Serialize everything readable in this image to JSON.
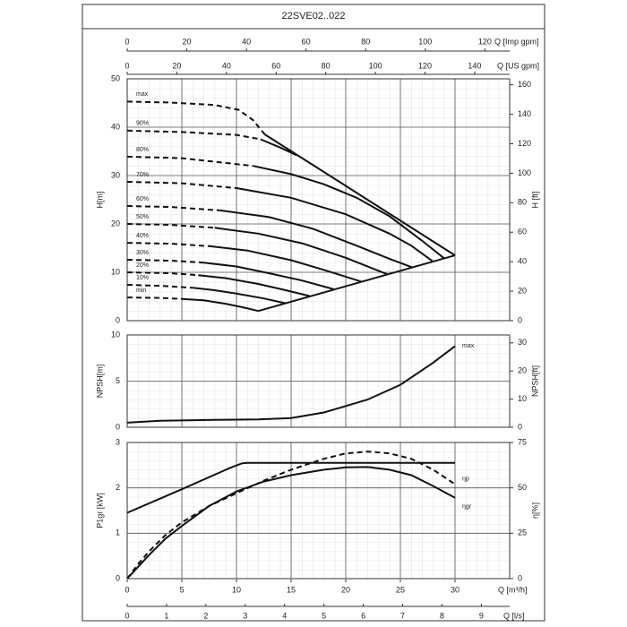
{
  "title": "22SVE02..022",
  "axes": {
    "imp": {
      "label": "Q [Imp gpm]",
      "xlim": [
        0,
        128.3
      ],
      "xticks": [
        0,
        20,
        40,
        60,
        80,
        100,
        120
      ]
    },
    "us": {
      "label": "Q [US gpm]",
      "xlim": [
        0,
        154.1
      ],
      "xticks": [
        0,
        20,
        40,
        60,
        80,
        100,
        120,
        140
      ]
    },
    "m3h": {
      "label": "Q [m³/h]",
      "xlim": [
        0,
        35
      ],
      "xticks": [
        0,
        5,
        10,
        15,
        20,
        25,
        30
      ]
    },
    "ls": {
      "label": "Q [l/s]",
      "xlim": [
        0,
        9.72
      ],
      "xticks": [
        0,
        1,
        2,
        3,
        4,
        5,
        6,
        7,
        8,
        9
      ]
    }
  },
  "chart_data": [
    {
      "type": "curves",
      "ylabel": "H[m]",
      "y2label": "H [ft]",
      "ylim": [
        0,
        50
      ],
      "yticks": [
        0,
        10,
        20,
        30,
        40,
        50
      ],
      "y2lim": [
        0,
        164.04
      ],
      "y2ticks": [
        0,
        20,
        40,
        60,
        80,
        100,
        120,
        140,
        160
      ],
      "color": "#111111",
      "curves": [
        {
          "name": "max",
          "dashed": {
            "x": [
              0,
              4,
              8,
              10.2,
              11.5,
              12.6
            ],
            "values": [
              45.3,
              45.1,
              44.6,
              43.6,
              41.5,
              38.5
            ]
          },
          "solid": {
            "x": [
              12.6,
              30
            ],
            "values": [
              38.5,
              13.5
            ]
          }
        },
        {
          "name": "90%",
          "dashed": {
            "x": [
              0,
              5,
              10,
              12.2
            ],
            "values": [
              39.3,
              39,
              38.4,
              37.5
            ]
          },
          "solid": {
            "x": [
              12.2,
              14,
              15.5
            ],
            "values": [
              37.5,
              35.8,
              34.2
            ]
          }
        },
        {
          "name": "80%",
          "dashed": {
            "x": [
              0,
              5,
              11.5
            ],
            "values": [
              33.9,
              33.6,
              32
            ]
          },
          "solid": {
            "x": [
              11.5,
              15,
              18,
              21,
              24,
              27,
              29
            ],
            "values": [
              32,
              30.3,
              28.2,
              25.4,
              21.6,
              16.5,
              12.9
            ]
          }
        },
        {
          "name": "70%",
          "dashed": {
            "x": [
              0,
              5,
              10
            ],
            "values": [
              28.7,
              28.4,
              27.4
            ]
          },
          "solid": {
            "x": [
              10,
              15,
              20,
              24,
              26,
              28
            ],
            "values": [
              27.4,
              25.4,
              22,
              18,
              15.5,
              12.2
            ]
          }
        },
        {
          "name": "60%",
          "dashed": {
            "x": [
              0,
              4,
              8.5
            ],
            "values": [
              23.7,
              23.5,
              22.8
            ]
          },
          "solid": {
            "x": [
              8.5,
              13,
              17,
              21,
              24,
              26.1
            ],
            "values": [
              22.8,
              21.4,
              19,
              15.5,
              12.8,
              11
            ]
          }
        },
        {
          "name": "50%",
          "dashed": {
            "x": [
              0,
              4,
              8
            ],
            "values": [
              20,
              19.8,
              19.2
            ]
          },
          "solid": {
            "x": [
              8,
              12,
              16,
              20,
              23.8
            ],
            "values": [
              19.2,
              18,
              16,
              13,
              9.6
            ]
          }
        },
        {
          "name": "40%",
          "dashed": {
            "x": [
              0,
              4,
              7.5
            ],
            "values": [
              16.1,
              15.9,
              15.4
            ]
          },
          "solid": {
            "x": [
              7.5,
              11,
              15,
              18,
              21.4
            ],
            "values": [
              15.4,
              14.5,
              12.5,
              10.5,
              8.1
            ]
          }
        },
        {
          "name": "30%",
          "dashed": {
            "x": [
              0,
              4,
              7
            ],
            "values": [
              12.6,
              12.4,
              12
            ]
          },
          "solid": {
            "x": [
              7,
              10,
              13,
              16,
              18.9
            ],
            "values": [
              12,
              11.2,
              9.8,
              8.3,
              6.5
            ]
          }
        },
        {
          "name": "20%",
          "dashed": {
            "x": [
              0,
              4,
              6.5
            ],
            "values": [
              10,
              9.8,
              9.4
            ]
          },
          "solid": {
            "x": [
              6.5,
              9,
              12,
              14.5,
              16.7
            ],
            "values": [
              9.4,
              8.8,
              7.6,
              6.3,
              5.1
            ]
          }
        },
        {
          "name": "10%",
          "dashed": {
            "x": [
              0,
              3,
              6
            ],
            "values": [
              7.4,
              7.2,
              6.8
            ]
          },
          "solid": {
            "x": [
              6,
              8,
              10,
              12.5,
              14.5
            ],
            "values": [
              6.8,
              6.3,
              5.6,
              4.6,
              3.6
            ]
          }
        },
        {
          "name": "min",
          "dashed": {
            "x": [
              0,
              3,
              5
            ],
            "values": [
              4.8,
              4.7,
              4.5
            ]
          },
          "solid": {
            "x": [
              5,
              7,
              9,
              10.5,
              12
            ],
            "values": [
              4.5,
              4.2,
              3.5,
              2.8,
              2
            ]
          }
        }
      ],
      "envelope": {
        "x": [
          12,
          30
        ],
        "values": [
          2,
          13.5
        ]
      }
    },
    {
      "type": "line",
      "ylabel": "NPSH[m]",
      "y2label": "NPSH[ft]",
      "ylim": [
        0,
        10
      ],
      "yticks": [
        0,
        5,
        10
      ],
      "y2lim": [
        0,
        32.81
      ],
      "y2ticks": [
        0,
        10,
        20,
        30
      ],
      "series": [
        {
          "name": "max",
          "color": "#111111",
          "x": [
            0,
            3,
            8,
            12,
            15,
            18,
            20,
            22,
            25,
            28,
            30
          ],
          "values": [
            0.5,
            0.7,
            0.8,
            0.85,
            1.0,
            1.6,
            2.3,
            3.0,
            4.6,
            7.0,
            8.8
          ]
        }
      ]
    },
    {
      "type": "line",
      "ylabel": "P1gr [kW]",
      "y2label": "η[%]",
      "ylim": [
        0,
        3
      ],
      "yticks": [
        0,
        1,
        2,
        3
      ],
      "y2lim": [
        0,
        75
      ],
      "y2ticks": [
        0,
        25,
        50,
        75
      ],
      "series": [
        {
          "color": "#111111",
          "x": [
            0,
            5,
            9.5,
            10.5,
            11,
            30
          ],
          "values": [
            1.45,
            1.97,
            2.45,
            2.54,
            2.55,
            2.55
          ]
        },
        {
          "name": "ηp",
          "color": "#111111",
          "dashed": true,
          "axis": "y2",
          "x": [
            0,
            1,
            2,
            3.5,
            5,
            7.5,
            10,
            12.5,
            15,
            18,
            20,
            22,
            24,
            26,
            28,
            30
          ],
          "values": [
            0,
            8,
            15,
            24,
            31,
            40,
            47,
            54,
            60,
            66,
            69,
            70,
            69,
            66,
            60,
            52
          ]
        },
        {
          "name": "ηgr",
          "color": "#111111",
          "axis": "y2",
          "x": [
            0,
            1,
            2,
            3.5,
            5,
            7.5,
            10,
            12.5,
            15,
            18,
            20,
            22,
            24,
            26,
            28,
            30
          ],
          "values": [
            0,
            6.5,
            13,
            22,
            29,
            40,
            48,
            53.5,
            57,
            60,
            61.3,
            61.5,
            60,
            57,
            51,
            44.5
          ]
        }
      ]
    }
  ]
}
